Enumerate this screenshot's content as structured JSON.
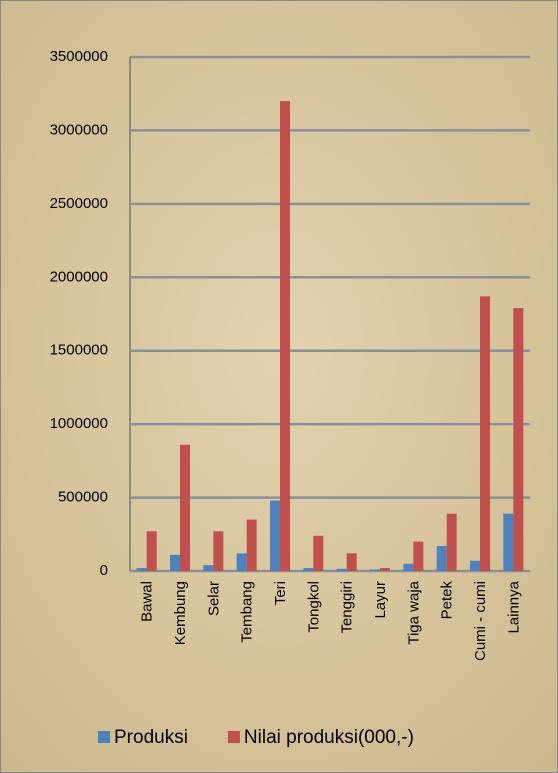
{
  "chart_data": {
    "type": "bar",
    "categories": [
      "Bawal",
      "Kembung",
      "Selar",
      "Tembang",
      "Teri",
      "Tongkol",
      "Tenggiri",
      "Layur",
      "Tiga waja",
      "Petek",
      "Cumi - cumi",
      "Lainnya"
    ],
    "series": [
      {
        "name": "Produksi",
        "color": "#4f81bd",
        "values": [
          20000,
          110000,
          40000,
          120000,
          480000,
          20000,
          15000,
          10000,
          50000,
          170000,
          70000,
          390000
        ]
      },
      {
        "name": "Nilai produksi(000,-)",
        "color": "#c0504d",
        "values": [
          270000,
          860000,
          270000,
          350000,
          3200000,
          240000,
          120000,
          20000,
          200000,
          390000,
          1870000,
          1790000
        ]
      }
    ],
    "ylim": [
      0,
      3500000
    ],
    "yticks": [
      0,
      500000,
      1000000,
      1500000,
      2000000,
      2500000,
      3000000,
      3500000
    ],
    "grid": true
  }
}
